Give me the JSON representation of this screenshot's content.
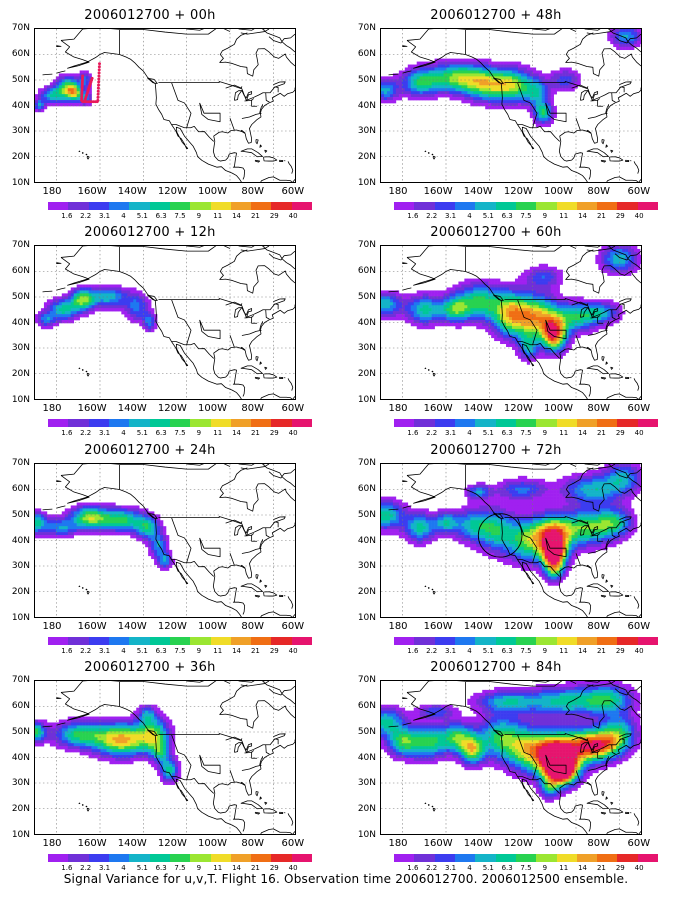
{
  "figure": {
    "caption": "Signal Variance for u,v,T. Flight 16. Observation time 2006012700. 2006012500 ensemble.",
    "lat_labels": [
      "70N",
      "60N",
      "50N",
      "40N",
      "30N",
      "20N",
      "10N"
    ],
    "lon_labels": [
      "180",
      "160W",
      "140W",
      "120W",
      "100W",
      "80W",
      "60W"
    ],
    "colorbar": {
      "labels": [
        "1.6",
        "2.2",
        "3.1",
        "4",
        "5.1",
        "6.3",
        "7.5",
        "9",
        "11",
        "14",
        "21",
        "29",
        "40"
      ],
      "colors": [
        "#a020f0",
        "#7030d8",
        "#3c3cf0",
        "#1e78f0",
        "#14b4c8",
        "#00c896",
        "#28d250",
        "#9be632",
        "#f0dc28",
        "#f0a028",
        "#f06e14",
        "#e62828",
        "#e6146e"
      ]
    },
    "colors": {
      "land_outline": "#000000",
      "grid": "#777777",
      "observation_marks": "#e8195a"
    },
    "panels": [
      {
        "title": "2006012700 + 00h"
      },
      {
        "title": "2006012700 + 12h"
      },
      {
        "title": "2006012700 + 24h"
      },
      {
        "title": "2006012700 + 36h"
      },
      {
        "title": "2006012700 + 48h"
      },
      {
        "title": "2006012700 + 60h"
      },
      {
        "title": "2006012700 + 72h"
      },
      {
        "title": "2006012700 + 84h"
      }
    ]
  }
}
